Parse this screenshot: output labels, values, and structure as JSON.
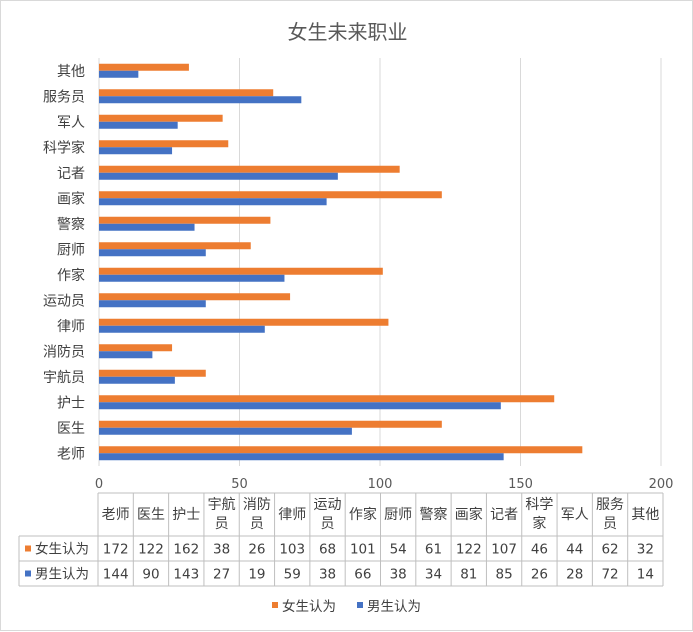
{
  "chart_data": {
    "type": "bar",
    "orientation": "horizontal",
    "title": "女生未来职业",
    "categories": [
      "老师",
      "医生",
      "护士",
      "宇航员",
      "消防员",
      "律师",
      "运动员",
      "作家",
      "厨师",
      "警察",
      "画家",
      "记者",
      "科学家",
      "军人",
      "服务员",
      "其他"
    ],
    "series": [
      {
        "name": "女生认为",
        "color": "#ed7d31",
        "values": [
          172,
          122,
          162,
          38,
          26,
          103,
          68,
          101,
          54,
          61,
          122,
          107,
          46,
          44,
          62,
          32
        ]
      },
      {
        "name": "男生认为",
        "color": "#4472c4",
        "values": [
          144,
          90,
          143,
          27,
          19,
          59,
          38,
          66,
          38,
          34,
          81,
          85,
          26,
          28,
          72,
          14
        ]
      }
    ],
    "xlim": [
      0,
      200
    ],
    "xticks": [
      0,
      50,
      100,
      150,
      200
    ],
    "xlabel": "",
    "ylabel": "",
    "grid": "vertical",
    "data_table": true,
    "table_column_labels": [
      [
        "老师"
      ],
      [
        "医生"
      ],
      [
        "护士"
      ],
      [
        "宇航",
        "员"
      ],
      [
        "消防",
        "员"
      ],
      [
        "律师"
      ],
      [
        "运动",
        "员"
      ],
      [
        "作家"
      ],
      [
        "厨师"
      ],
      [
        "警察"
      ],
      [
        "画家"
      ],
      [
        "记者"
      ],
      [
        "科学",
        "家"
      ],
      [
        "军人"
      ],
      [
        "服务",
        "员"
      ],
      [
        "其他"
      ]
    ],
    "legend_position": "bottom"
  }
}
